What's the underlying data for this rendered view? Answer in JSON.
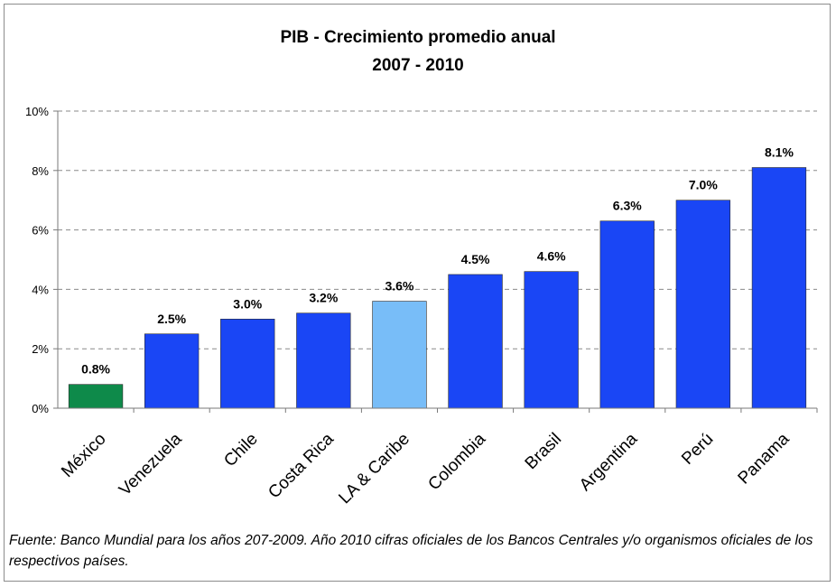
{
  "chart_data": {
    "type": "bar",
    "title": "PIB - Crecimiento promedio anual",
    "subtitle": "2007 - 2010",
    "categories": [
      "México",
      "Venezuela",
      "Chile",
      "Costa Rica",
      "LA & Caribe",
      "Colombia",
      "Brasil",
      "Argentina",
      "Perú",
      "Panama"
    ],
    "values": [
      0.8,
      2.5,
      3.0,
      3.2,
      3.6,
      4.5,
      4.6,
      6.3,
      7.0,
      8.1
    ],
    "data_labels": [
      "0.8%",
      "2.5%",
      "3.0%",
      "3.2%",
      "3.6%",
      "4.5%",
      "4.6%",
      "6.3%",
      "7.0%",
      "8.1%"
    ],
    "bar_colors": [
      "#0e8a4a",
      "#1a46f5",
      "#1a46f5",
      "#1a46f5",
      "#78bdf8",
      "#1a46f5",
      "#1a46f5",
      "#1a46f5",
      "#1a46f5",
      "#1a46f5"
    ],
    "ylim": [
      0,
      10
    ],
    "yticks": [
      0,
      2,
      4,
      6,
      8,
      10
    ],
    "ytick_labels": [
      "0%",
      "2%",
      "4%",
      "6%",
      "8%",
      "10%"
    ],
    "xlabel": "",
    "ylabel": "",
    "grid": "horizontal-dashed",
    "legend": "none"
  },
  "footnote": "Fuente: Banco Mundial para los años 207-2009. Año 2010 cifras oficiales de los Bancos Centrales y/o organismos oficiales de los respectivos países."
}
